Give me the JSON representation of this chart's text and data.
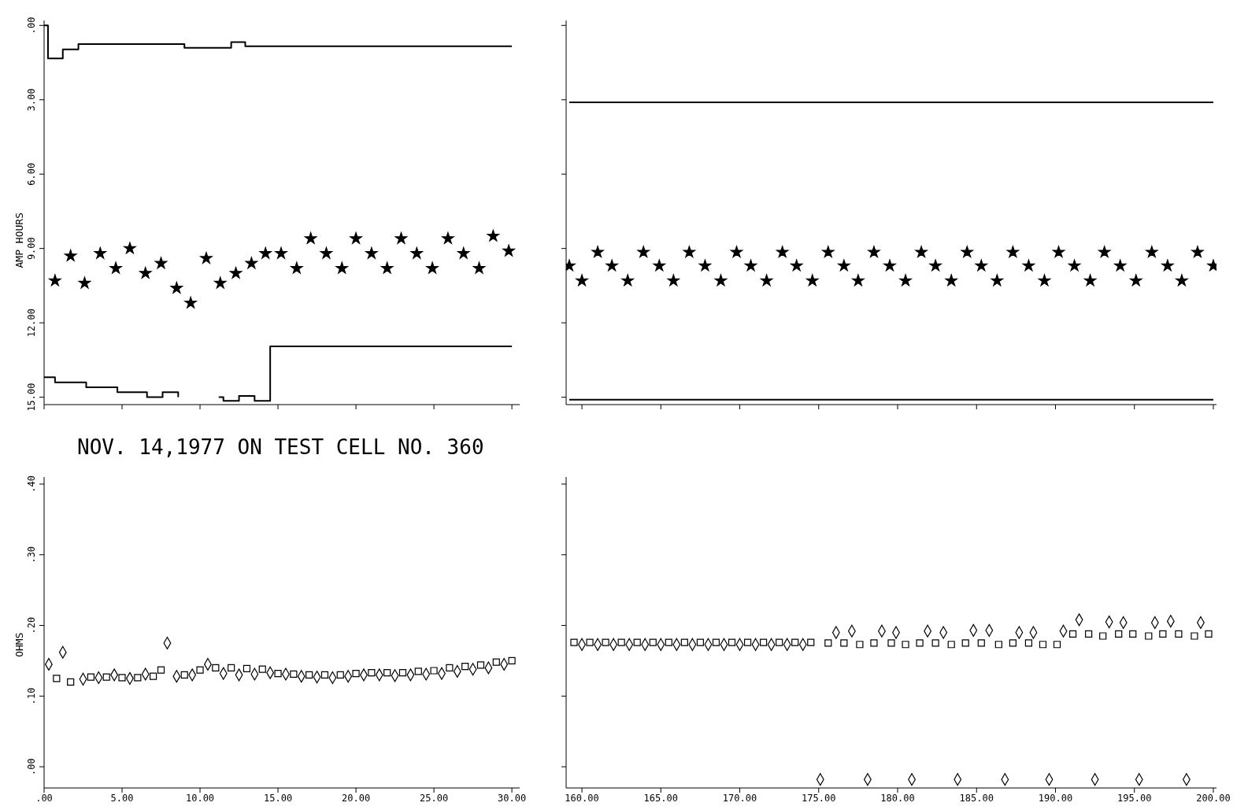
{
  "chart_data": [
    {
      "type": "step",
      "ylabel": "AMP HOURS",
      "xlim": [
        0,
        30.5
      ],
      "ylim": [
        15.3,
        -0.2
      ],
      "tick_labels": "y",
      "xticks": [
        0,
        5,
        10,
        15,
        20,
        25,
        30
      ],
      "yticks": [
        {
          "value": 0,
          "label": ".00"
        },
        {
          "value": 3,
          "label": "3.00"
        },
        {
          "value": 6,
          "label": "6.00"
        },
        {
          "value": 9,
          "label": "9.00"
        },
        {
          "value": 12,
          "label": "12.00"
        },
        {
          "value": 15,
          "label": "15.00"
        }
      ],
      "series": [
        {
          "color": "#000000",
          "x": [
            0,
            0.25,
            1.2,
            2.2,
            9.0,
            12.0,
            12.9,
            30.0
          ],
          "values": [
            0,
            1.33,
            0.97,
            0.75,
            0.9,
            0.67,
            0.84,
            0.84
          ]
        },
        {
          "color": "#000000",
          "x": [
            0,
            0.7,
            2.7,
            4.7,
            6.6,
            7.6,
            8.6,
            9.8,
            11.2,
            11.5,
            12.5,
            13.5,
            14.5,
            30.0
          ],
          "values": [
            14.2,
            14.4,
            14.6,
            14.8,
            15.0,
            14.8,
            15.0,
            null,
            15.0,
            15.15,
            14.95,
            15.15,
            12.95,
            12.95
          ]
        },
        {
          "type": "scatter",
          "color": "#000000",
          "marker": "star",
          "x": [
            0.7,
            1.7,
            2.6,
            3.6,
            4.6,
            5.5,
            6.5,
            7.5,
            8.5,
            9.4,
            10.4,
            11.3,
            12.3,
            13.3,
            14.2,
            15.2,
            16.2,
            17.1,
            18.1,
            19.1,
            20.0,
            21.0,
            22.0,
            22.9,
            23.9,
            24.9,
            25.9,
            26.9,
            27.9,
            28.8,
            29.8
          ],
          "values": [
            10.3,
            9.3,
            10.4,
            9.2,
            9.8,
            9.0,
            10.0,
            9.6,
            10.6,
            11.2,
            9.4,
            10.4,
            10.0,
            9.6,
            9.2,
            9.2,
            9.8,
            8.6,
            9.2,
            9.8,
            8.6,
            9.2,
            9.8,
            8.6,
            9.2,
            9.8,
            8.6,
            9.2,
            9.8,
            8.5,
            9.1
          ]
        }
      ]
    },
    {
      "type": "step",
      "xlim": [
        159,
        200.2
      ],
      "ylim": [
        15.3,
        -0.2
      ],
      "tick_labels": false,
      "xticks": [
        160,
        165,
        170,
        175,
        180,
        185,
        190,
        195,
        200
      ],
      "yticks": [
        0,
        3,
        6,
        9,
        12,
        15
      ],
      "series": [
        {
          "color": "#000000",
          "x": [
            159.2,
            200.0
          ],
          "values": [
            3.1,
            3.1
          ]
        },
        {
          "color": "#000000",
          "x": [
            159.2,
            200.0
          ],
          "values": [
            15.1,
            15.1
          ]
        },
        {
          "type": "scatter",
          "color": "#000000",
          "marker": "star",
          "x": [
            159.2,
            160.0,
            161.0,
            161.9,
            162.9,
            163.9,
            164.9,
            165.8,
            166.8,
            167.8,
            168.8,
            169.8,
            170.7,
            171.7,
            172.7,
            173.6,
            174.6,
            175.6,
            176.6,
            177.5,
            178.5,
            179.5,
            180.5,
            181.5,
            182.4,
            183.4,
            184.4,
            185.3,
            186.3,
            187.3,
            188.3,
            189.3,
            190.2,
            191.2,
            192.2,
            193.1,
            194.1,
            195.1,
            196.1,
            197.1,
            198.0,
            199.0,
            200.0
          ],
          "values": [
            9.7,
            10.3,
            9.15,
            9.7,
            10.3,
            9.15,
            9.7,
            10.3,
            9.15,
            9.7,
            10.3,
            9.15,
            9.7,
            10.3,
            9.15,
            9.7,
            10.3,
            9.15,
            9.7,
            10.3,
            9.15,
            9.7,
            10.3,
            9.15,
            9.7,
            10.3,
            9.15,
            9.7,
            10.3,
            9.15,
            9.7,
            10.3,
            9.15,
            9.7,
            10.3,
            9.15,
            9.7,
            10.3,
            9.15,
            9.7,
            10.3,
            9.15,
            9.7
          ]
        }
      ]
    },
    {
      "type": "scatter",
      "title": "NOV. 14,1977 ON TEST CELL NO. 360",
      "ylabel": "OHMS",
      "xlim": [
        0,
        30.5
      ],
      "ylim": [
        -0.03,
        0.41
      ],
      "xticks": [
        {
          "value": 0,
          "label": ".00"
        },
        {
          "value": 5,
          "label": "5.00"
        },
        {
          "value": 10,
          "label": "10.00"
        },
        {
          "value": 15,
          "label": "15.00"
        },
        {
          "value": 20,
          "label": "20.00"
        },
        {
          "value": 25,
          "label": "25.00"
        },
        {
          "value": 30,
          "label": "30.00"
        }
      ],
      "yticks": [
        {
          "value": 0,
          "label": ".00"
        },
        {
          "value": 0.1,
          "label": ".10"
        },
        {
          "value": 0.2,
          "label": ".20"
        },
        {
          "value": 0.3,
          "label": ".30"
        },
        {
          "value": 0.4,
          "label": ".40"
        }
      ],
      "series": [
        {
          "marker": "diamond",
          "color": "#000000",
          "x": [
            0.3,
            1.2,
            2.5,
            3.5,
            4.5,
            5.5,
            6.5,
            7.9,
            8.5,
            9.5,
            10.5,
            11.5,
            12.5,
            13.5,
            14.5,
            15.5,
            16.5,
            17.5,
            18.5,
            19.5,
            20.5,
            21.5,
            22.5,
            23.5,
            24.5,
            25.5,
            26.5,
            27.5,
            28.5,
            29.5
          ],
          "values": [
            0.145,
            0.162,
            0.124,
            0.126,
            0.13,
            0.125,
            0.131,
            0.175,
            0.128,
            0.13,
            0.145,
            0.132,
            0.13,
            0.131,
            0.133,
            0.131,
            0.128,
            0.127,
            0.126,
            0.128,
            0.13,
            0.13,
            0.129,
            0.13,
            0.131,
            0.132,
            0.135,
            0.138,
            0.14,
            0.145
          ]
        },
        {
          "marker": "square",
          "color": "#000000",
          "x": [
            0.8,
            1.7,
            3,
            4,
            5,
            6,
            7,
            7.5,
            9,
            10,
            11,
            12,
            13,
            14,
            15,
            16,
            17,
            18,
            19,
            20,
            21,
            22,
            23,
            24,
            25,
            26,
            27,
            28,
            29,
            30
          ],
          "values": [
            0.125,
            0.12,
            0.127,
            0.127,
            0.126,
            0.126,
            0.128,
            0.137,
            0.13,
            0.137,
            0.14,
            0.14,
            0.139,
            0.138,
            0.132,
            0.131,
            0.13,
            0.13,
            0.13,
            0.132,
            0.133,
            0.133,
            0.133,
            0.135,
            0.136,
            0.14,
            0.142,
            0.144,
            0.148,
            0.15
          ]
        }
      ]
    },
    {
      "type": "scatter",
      "xlim": [
        159,
        200.2
      ],
      "ylim": [
        -0.03,
        0.41
      ],
      "tick_labels": "x",
      "xticks": [
        {
          "value": 160,
          "label": "160.00"
        },
        {
          "value": 165,
          "label": "165.00"
        },
        {
          "value": 170,
          "label": "170.00"
        },
        {
          "value": 175,
          "label": "175.00"
        },
        {
          "value": 180,
          "label": "180.00"
        },
        {
          "value": 185,
          "label": "185.00"
        },
        {
          "value": 190,
          "label": "190.00"
        },
        {
          "value": 195,
          "label": "195.00"
        },
        {
          "value": 200,
          "label": "200.00"
        }
      ],
      "yticks": [
        0,
        0.1,
        0.2,
        0.3,
        0.4
      ],
      "series": [
        {
          "marker": "diamond",
          "color": "#000000",
          "x": [
            160,
            161,
            162,
            163,
            164,
            165,
            166,
            167,
            168,
            169,
            170,
            171,
            172,
            173,
            174,
            176.1,
            177.1,
            179.0,
            179.9,
            181.9,
            182.9,
            184.8,
            185.8,
            187.7,
            188.6,
            190.5,
            191.5,
            193.4,
            194.3,
            196.3,
            197.3,
            199.2,
            175.1,
            178.1,
            180.9,
            183.8,
            186.8,
            189.6,
            192.5,
            195.3,
            198.3
          ],
          "values": [
            0.173,
            0.173,
            0.173,
            0.173,
            0.173,
            0.173,
            0.173,
            0.173,
            0.173,
            0.173,
            0.173,
            0.173,
            0.173,
            0.173,
            0.173,
            0.19,
            0.192,
            0.192,
            0.19,
            0.192,
            0.19,
            0.193,
            0.193,
            0.19,
            0.19,
            0.192,
            0.208,
            0.205,
            0.204,
            0.204,
            0.206,
            0.204,
            -0.018,
            -0.018,
            -0.018,
            -0.018,
            -0.018,
            -0.018,
            -0.018,
            -0.018,
            -0.018
          ]
        },
        {
          "marker": "square",
          "color": "#000000",
          "x": [
            159.5,
            160.5,
            161.5,
            162.5,
            163.5,
            164.5,
            165.5,
            166.5,
            167.5,
            168.5,
            169.5,
            170.5,
            171.5,
            172.5,
            173.5,
            174.5,
            175.6,
            176.6,
            177.6,
            178.5,
            179.6,
            180.5,
            181.4,
            182.4,
            183.4,
            184.3,
            185.3,
            186.4,
            187.3,
            188.3,
            189.2,
            190.1,
            191.1,
            192.1,
            193.0,
            194.0,
            194.9,
            195.9,
            196.8,
            197.8,
            198.8,
            199.7
          ],
          "values": [
            0.176,
            0.176,
            0.176,
            0.176,
            0.176,
            0.176,
            0.176,
            0.176,
            0.176,
            0.176,
            0.176,
            0.176,
            0.176,
            0.176,
            0.176,
            0.176,
            0.175,
            0.175,
            0.173,
            0.175,
            0.175,
            0.173,
            0.175,
            0.175,
            0.173,
            0.175,
            0.175,
            0.173,
            0.175,
            0.175,
            0.173,
            0.173,
            0.188,
            0.188,
            0.185,
            0.188,
            0.188,
            0.185,
            0.188,
            0.188,
            0.185,
            0.188
          ]
        }
      ]
    }
  ]
}
